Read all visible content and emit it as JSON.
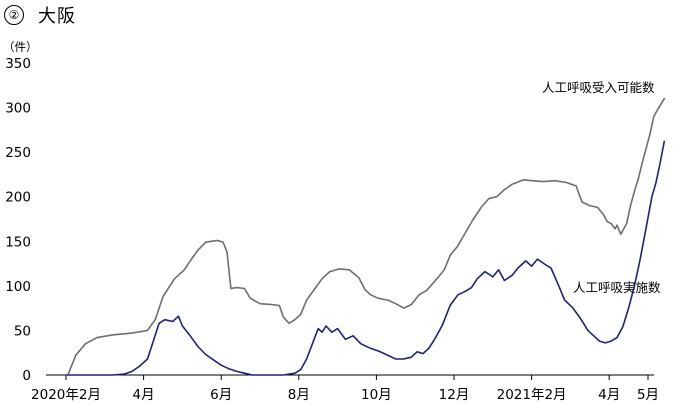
{
  "header": {
    "number": "②",
    "title": "大阪"
  },
  "chart_data": {
    "type": "line",
    "unit": "（件）",
    "ylim": [
      0,
      350
    ],
    "yticks": [
      0,
      50,
      100,
      150,
      200,
      250,
      300,
      350
    ],
    "xticks": [
      {
        "label": "2020年2月",
        "t": 0
      },
      {
        "label": "4月",
        "t": 2
      },
      {
        "label": "6月",
        "t": 4
      },
      {
        "label": "8月",
        "t": 6
      },
      {
        "label": "10月",
        "t": 8
      },
      {
        "label": "12月",
        "t": 10
      },
      {
        "label": "2021年2月",
        "t": 12
      },
      {
        "label": "4月",
        "t": 14
      },
      {
        "label": "5月",
        "t": 15
      }
    ],
    "grid": false,
    "series": [
      {
        "name": "人工呼吸受入可能数",
        "color": "#6e6e6e",
        "points": [
          [
            0.05,
            0
          ],
          [
            0.25,
            22
          ],
          [
            0.5,
            35
          ],
          [
            0.8,
            42
          ],
          [
            1.2,
            45
          ],
          [
            1.7,
            47
          ],
          [
            2.1,
            50
          ],
          [
            2.3,
            62
          ],
          [
            2.5,
            88
          ],
          [
            2.8,
            108
          ],
          [
            3.05,
            118
          ],
          [
            3.2,
            128
          ],
          [
            3.4,
            140
          ],
          [
            3.6,
            149
          ],
          [
            3.9,
            151
          ],
          [
            4.05,
            149
          ],
          [
            4.15,
            138
          ],
          [
            4.25,
            97
          ],
          [
            4.4,
            98
          ],
          [
            4.6,
            97
          ],
          [
            4.75,
            86
          ],
          [
            5.0,
            80
          ],
          [
            5.3,
            79
          ],
          [
            5.5,
            78
          ],
          [
            5.6,
            65
          ],
          [
            5.75,
            58
          ],
          [
            5.9,
            62
          ],
          [
            6.05,
            68
          ],
          [
            6.2,
            84
          ],
          [
            6.4,
            96
          ],
          [
            6.6,
            108
          ],
          [
            6.8,
            116
          ],
          [
            7.05,
            119
          ],
          [
            7.3,
            118
          ],
          [
            7.55,
            109
          ],
          [
            7.7,
            96
          ],
          [
            7.85,
            90
          ],
          [
            8.05,
            86
          ],
          [
            8.3,
            84
          ],
          [
            8.5,
            80
          ],
          [
            8.7,
            75
          ],
          [
            8.9,
            79
          ],
          [
            9.1,
            90
          ],
          [
            9.3,
            95
          ],
          [
            9.6,
            110
          ],
          [
            9.75,
            118
          ],
          [
            9.9,
            134
          ],
          [
            10.1,
            145
          ],
          [
            10.3,
            160
          ],
          [
            10.5,
            175
          ],
          [
            10.7,
            188
          ],
          [
            10.9,
            198
          ],
          [
            11.1,
            200
          ],
          [
            11.3,
            208
          ],
          [
            11.5,
            214
          ],
          [
            11.8,
            219
          ],
          [
            12.0,
            218
          ],
          [
            12.3,
            217
          ],
          [
            12.6,
            218
          ],
          [
            12.9,
            216
          ],
          [
            13.15,
            212
          ],
          [
            13.3,
            194
          ],
          [
            13.5,
            190
          ],
          [
            13.7,
            188
          ],
          [
            13.85,
            180
          ],
          [
            13.95,
            172
          ],
          [
            14.05,
            170
          ],
          [
            14.15,
            164
          ],
          [
            14.2,
            168
          ],
          [
            14.3,
            158
          ],
          [
            14.35,
            162
          ],
          [
            14.45,
            170
          ],
          [
            14.55,
            190
          ],
          [
            14.65,
            206
          ],
          [
            14.75,
            220
          ],
          [
            14.85,
            238
          ],
          [
            14.95,
            254
          ],
          [
            15.05,
            270
          ],
          [
            15.15,
            290
          ],
          [
            15.25,
            298
          ],
          [
            15.35,
            305
          ],
          [
            15.42,
            310
          ]
        ]
      },
      {
        "name": "人工呼吸実施数",
        "color": "#1a237e",
        "points": [
          [
            0.05,
            0
          ],
          [
            1.2,
            0
          ],
          [
            1.5,
            1
          ],
          [
            1.7,
            4
          ],
          [
            1.9,
            10
          ],
          [
            2.1,
            18
          ],
          [
            2.25,
            38
          ],
          [
            2.4,
            58
          ],
          [
            2.55,
            62
          ],
          [
            2.75,
            60
          ],
          [
            2.9,
            66
          ],
          [
            3.0,
            55
          ],
          [
            3.2,
            44
          ],
          [
            3.4,
            32
          ],
          [
            3.6,
            23
          ],
          [
            3.8,
            17
          ],
          [
            4.0,
            11
          ],
          [
            4.2,
            7
          ],
          [
            4.4,
            4
          ],
          [
            4.6,
            2
          ],
          [
            4.8,
            0
          ],
          [
            5.2,
            0
          ],
          [
            5.6,
            0
          ],
          [
            5.9,
            2
          ],
          [
            6.05,
            6
          ],
          [
            6.2,
            18
          ],
          [
            6.35,
            35
          ],
          [
            6.5,
            52
          ],
          [
            6.6,
            48
          ],
          [
            6.7,
            55
          ],
          [
            6.85,
            48
          ],
          [
            7.0,
            52
          ],
          [
            7.2,
            40
          ],
          [
            7.4,
            44
          ],
          [
            7.6,
            35
          ],
          [
            7.85,
            30
          ],
          [
            8.1,
            26
          ],
          [
            8.3,
            22
          ],
          [
            8.5,
            18
          ],
          [
            8.7,
            18
          ],
          [
            8.9,
            20
          ],
          [
            9.05,
            26
          ],
          [
            9.2,
            24
          ],
          [
            9.35,
            30
          ],
          [
            9.5,
            40
          ],
          [
            9.7,
            56
          ],
          [
            9.9,
            78
          ],
          [
            10.1,
            90
          ],
          [
            10.3,
            94
          ],
          [
            10.45,
            98
          ],
          [
            10.6,
            108
          ],
          [
            10.8,
            116
          ],
          [
            11.0,
            110
          ],
          [
            11.15,
            118
          ],
          [
            11.3,
            106
          ],
          [
            11.5,
            112
          ],
          [
            11.65,
            120
          ],
          [
            11.85,
            128
          ],
          [
            12.0,
            122
          ],
          [
            12.15,
            130
          ],
          [
            12.35,
            124
          ],
          [
            12.5,
            120
          ],
          [
            12.7,
            100
          ],
          [
            12.85,
            84
          ],
          [
            13.05,
            76
          ],
          [
            13.25,
            64
          ],
          [
            13.45,
            50
          ],
          [
            13.6,
            44
          ],
          [
            13.75,
            38
          ],
          [
            13.9,
            36
          ],
          [
            14.05,
            38
          ],
          [
            14.2,
            42
          ],
          [
            14.35,
            54
          ],
          [
            14.5,
            75
          ],
          [
            14.65,
            100
          ],
          [
            14.8,
            130
          ],
          [
            14.95,
            165
          ],
          [
            15.1,
            200
          ],
          [
            15.2,
            215
          ],
          [
            15.3,
            235
          ],
          [
            15.42,
            262
          ]
        ]
      }
    ],
    "annotations": [
      "人工呼吸受入可能数",
      "人工呼吸実施数"
    ]
  }
}
